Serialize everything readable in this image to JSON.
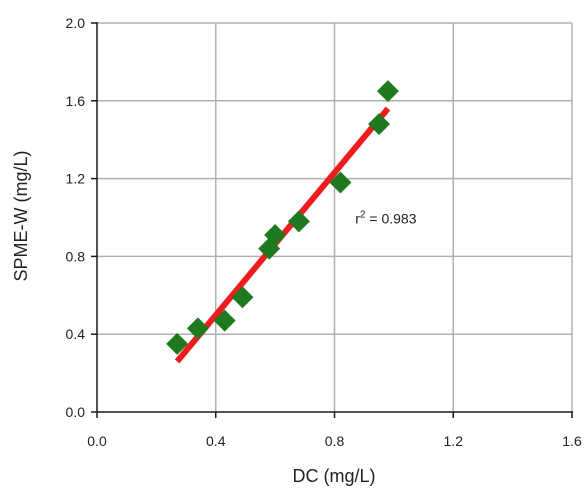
{
  "chart_data": {
    "type": "scatter",
    "xlabel": "DC (mg/L)",
    "ylabel": "SPME-W (mg/L)",
    "xlim": [
      0.0,
      1.6
    ],
    "ylim": [
      0.0,
      2.0
    ],
    "x_ticks": [
      "0.0",
      "0.4",
      "0.8",
      "1.2",
      "1.6"
    ],
    "y_ticks": [
      "0.0",
      "0.4",
      "0.8",
      "1.2",
      "1.6",
      "2.0"
    ],
    "grid": true,
    "points": [
      {
        "x": 0.27,
        "y": 0.35
      },
      {
        "x": 0.34,
        "y": 0.43
      },
      {
        "x": 0.43,
        "y": 0.47
      },
      {
        "x": 0.49,
        "y": 0.59
      },
      {
        "x": 0.58,
        "y": 0.84
      },
      {
        "x": 0.6,
        "y": 0.91
      },
      {
        "x": 0.68,
        "y": 0.98
      },
      {
        "x": 0.82,
        "y": 1.18
      },
      {
        "x": 0.95,
        "y": 1.48
      },
      {
        "x": 0.98,
        "y": 1.65
      }
    ],
    "fit_line": {
      "x": [
        0.27,
        0.98
      ],
      "y": [
        0.26,
        1.56
      ]
    },
    "annotation": {
      "prefix": "r",
      "superscript": "2",
      "text": " = 0.983",
      "x": 0.88,
      "y": 0.98
    },
    "colors": {
      "points": "#1f7a1f",
      "fit_line": "#ee1c1c",
      "grid": "#b0b0b0",
      "axes": "#1a1a1a"
    }
  }
}
